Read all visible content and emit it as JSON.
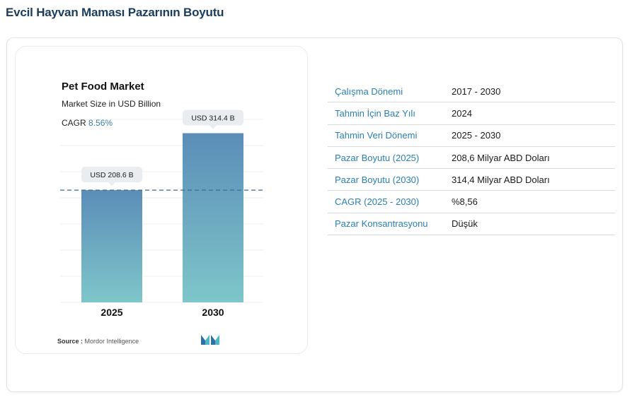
{
  "page": {
    "title": "Evcil Hayvan Maması Pazarının Boyutu"
  },
  "chart_data": {
    "type": "bar",
    "title": "Pet Food Market",
    "subtitle": "Market Size in USD Billion",
    "cagr_label": "CAGR",
    "cagr_value": "8.56%",
    "categories": [
      "2025",
      "2030"
    ],
    "values": [
      208.6,
      314.4
    ],
    "data_labels": [
      "USD 208.6 B",
      "USD 314.4 B"
    ],
    "reference_line": 208.6,
    "ylim": [
      0,
      340
    ],
    "grid": true,
    "colors": {
      "bar_top": "#5b8db8",
      "bar_bottom": "#7ec6c9",
      "label_bg": "#e9edf0",
      "ref_line": "#3a6a8f"
    }
  },
  "footer": {
    "source_label": "Source :",
    "source_value": "Mordor Intelligence"
  },
  "table": {
    "rows": [
      {
        "key": "Çalışma Dönemi",
        "value": "2017 - 2030"
      },
      {
        "key": "Tahmin İçin Baz Yılı",
        "value": "2024"
      },
      {
        "key": "Tahmin Veri Dönemi",
        "value": "2025 - 2030"
      },
      {
        "key": "Pazar Boyutu (2025)",
        "value": "208,6 Milyar ABD Doları"
      },
      {
        "key": "Pazar Boyutu (2030)",
        "value": "314,4 Milyar ABD Doları"
      },
      {
        "key": "CAGR (2025 - 2030)",
        "value": "%8,56"
      },
      {
        "key": "Pazar Konsantrasyonu",
        "value": "Düşük"
      }
    ]
  },
  "icons": {
    "logo": "mordor-intelligence-logo"
  }
}
